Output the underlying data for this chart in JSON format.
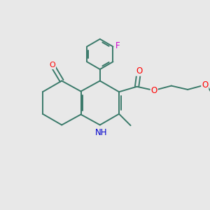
{
  "bg_color": "#e8e8e8",
  "bond_color": "#3a7a6a",
  "atom_colors": {
    "O": "#ff0000",
    "N": "#0000cc",
    "F": "#cc00cc",
    "C": "#3a7a6a"
  },
  "figsize": [
    3.0,
    3.0
  ],
  "dpi": 100,
  "lw": 1.4,
  "sep": 0.09
}
